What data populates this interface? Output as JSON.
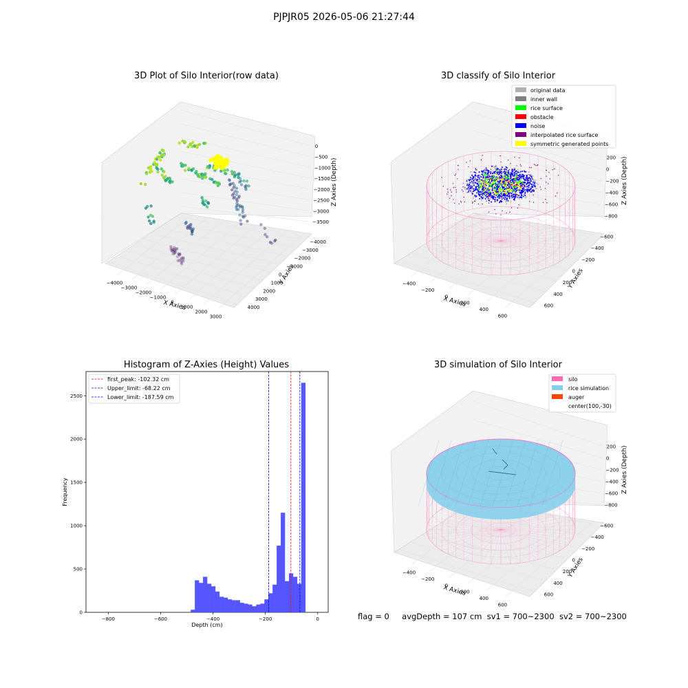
{
  "suptitle": "PJPJR05 2026-05-06 21:27:44",
  "status": {
    "flag": "flag = 0",
    "avg": "avgDepth = 107 cm",
    "sv1": "sv1 = 700~2300",
    "sv2": "sv2 = 700~2300"
  },
  "colors": {
    "grid": "#e4e4e4",
    "pane": "#f2f2f2",
    "pink": "#ff69b4",
    "blue": "#0000ff",
    "red": "#ff0000",
    "hist": "#4d4dff",
    "sky": "#87ceeb",
    "orange": "#ff4500",
    "gray": "#b0b0b0",
    "darkgray": "#808080",
    "green": "#00ff00",
    "purple": "#800080",
    "yellow": "#ffff00"
  },
  "chart_data": [
    {
      "type": "scatter",
      "title": "3D Plot of Silo Interior(row data)",
      "xlabel": "X Axies",
      "ylabel": "Y Axies",
      "zlabel": "Z Axies (Depth)",
      "xticks": [
        "−4000",
        "−3000",
        "−2000",
        "−1000",
        "0",
        "1000",
        "2000",
        "3000"
      ],
      "yticks": [
        "4000",
        "3000",
        "2000",
        "1000",
        "0",
        "−1000",
        "−2000",
        "−3000",
        "−4000"
      ],
      "zticks": [
        "0",
        "−500",
        "−1000",
        "−1500",
        "−2000",
        "−2500",
        "−3000",
        "−3500"
      ]
    },
    {
      "type": "scatter",
      "title": "3D classify of Silo Interior",
      "xlabel": "X Axies",
      "ylabel": "Y Axies",
      "zlabel": "Z Axies (Depth)",
      "xticks": [
        "−400",
        "−200",
        "0",
        "200",
        "400",
        "600"
      ],
      "yticks": [
        "600",
        "400",
        "200",
        "0",
        "−200",
        "−400",
        "−600"
      ],
      "zticks": [
        "200",
        "0",
        "−200",
        "−400",
        "−600",
        "−800"
      ],
      "legend": [
        {
          "label": "original data",
          "color": "#b0b0b0"
        },
        {
          "label": "inner wall",
          "color": "#808080"
        },
        {
          "label": "rice surface",
          "color": "#00ff00"
        },
        {
          "label": "obstacle",
          "color": "#ff0000"
        },
        {
          "label": "noise",
          "color": "#0000ff"
        },
        {
          "label": "interpolated rice surface",
          "color": "#800080"
        },
        {
          "label": "symmetric generated points",
          "color": "#ffff00"
        }
      ],
      "legend_position": "top-right"
    },
    {
      "type": "bar",
      "title": "Histogram of Z-Axies (Height) Values",
      "xlabel": "Depth (cm)",
      "ylabel": "Frequency",
      "xlim": [
        -885,
        40
      ],
      "ylim": [
        0,
        2780
      ],
      "xticks": [
        {
          "v": -800,
          "t": "−800"
        },
        {
          "v": -600,
          "t": "−600"
        },
        {
          "v": -400,
          "t": "−400"
        },
        {
          "v": -200,
          "t": "−200"
        },
        {
          "v": 0,
          "t": "0"
        }
      ],
      "yticks": [
        {
          "v": 0,
          "t": "0"
        },
        {
          "v": 500,
          "t": "500"
        },
        {
          "v": 1000,
          "t": "1000"
        },
        {
          "v": 1500,
          "t": "1500"
        },
        {
          "v": 2000,
          "t": "2000"
        },
        {
          "v": 2500,
          "t": "2500"
        }
      ],
      "bin_edges_start": -485,
      "bin_width": 15.63,
      "values": [
        30,
        370,
        340,
        410,
        330,
        300,
        240,
        180,
        170,
        150,
        140,
        140,
        110,
        100,
        90,
        70,
        90,
        100,
        150,
        220,
        320,
        770,
        1150,
        360,
        450,
        410,
        330,
        2650
      ],
      "vlines": [
        {
          "label": "first_peak: -102.32 cm",
          "x": -102.32,
          "color": "#ff0000"
        },
        {
          "label": "Upper_limit: -68.22 cm",
          "x": -68.22,
          "color": "#0000ff"
        },
        {
          "label": "Lower_limit: -187.59 cm",
          "x": -187.59,
          "color": "#0000ff"
        }
      ],
      "legend_position": "top-left"
    },
    {
      "type": "surface",
      "title": "3D simulation of Silo Interior",
      "xlabel": "X Axies",
      "ylabel": "Y Axies",
      "zlabel": "Z Axies (Depth)",
      "xticks": [
        "−400",
        "−200",
        "0",
        "200",
        "400",
        "600"
      ],
      "yticks": [
        "600",
        "400",
        "200",
        "0",
        "−200",
        "−400",
        "−600"
      ],
      "zticks": [
        "200",
        "0",
        "−200",
        "−400",
        "−600",
        "−800"
      ],
      "legend": [
        {
          "label": "silo",
          "color": "#ff69b4"
        },
        {
          "label": "rice simulation",
          "color": "#87ceeb"
        },
        {
          "label": "auger",
          "color": "#ff4500"
        },
        {
          "label": "center(100,-30)",
          "color": ""
        }
      ],
      "legend_position": "top-right"
    }
  ]
}
